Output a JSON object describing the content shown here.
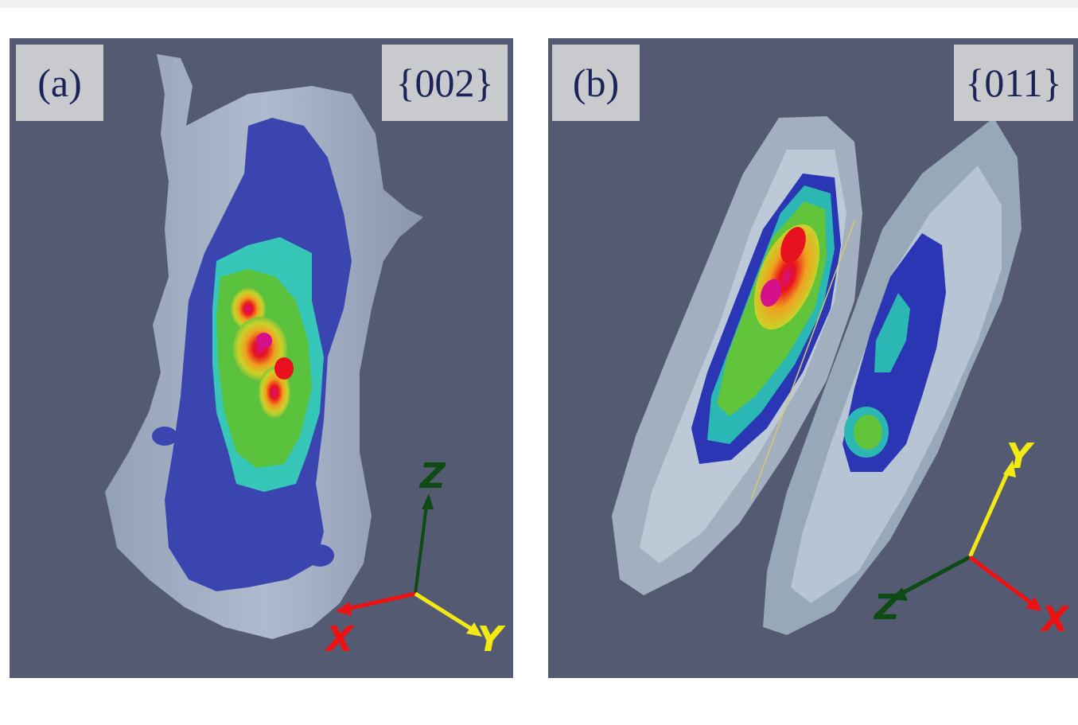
{
  "panels": [
    {
      "tag": "(a)",
      "plane": "{002}",
      "axes": {
        "z_label": "Z",
        "x_label": "X",
        "y_label": "Y",
        "z_color": "#0e4a14",
        "x_color": "#ee1111",
        "y_color": "#f2ea12"
      }
    },
    {
      "tag": "(b)",
      "plane": "{011}",
      "axes": {
        "z_label": "Z",
        "x_label": "X",
        "y_label": "Y",
        "z_color": "#0e4a14",
        "x_color": "#ee1111",
        "y_color": "#f2ea12"
      }
    }
  ],
  "colors": {
    "background": "#545a72",
    "label_box": "#c9cacd",
    "label_text": "#1b2458"
  }
}
